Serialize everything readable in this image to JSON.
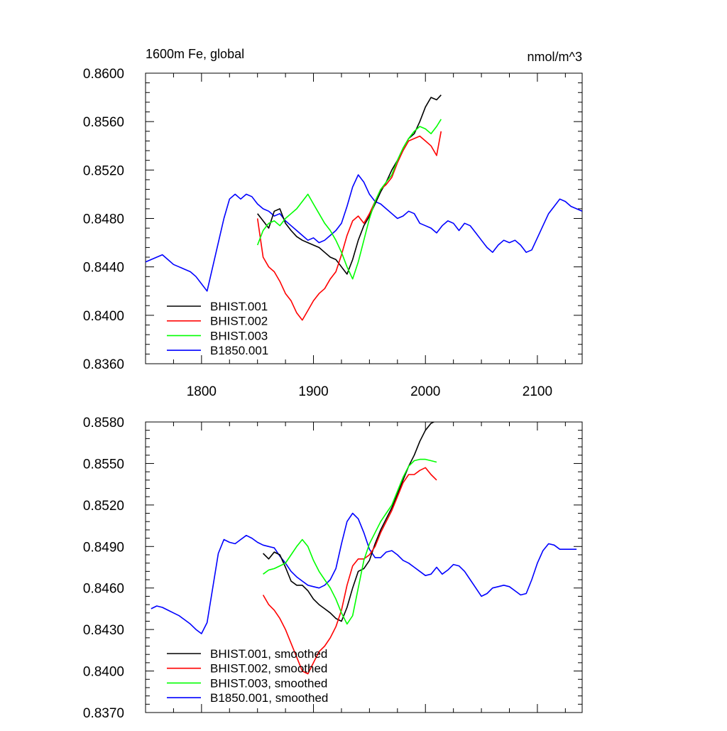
{
  "chart_data": [
    {
      "type": "line",
      "title_left": "1600m Fe, global",
      "title_right": "nmol/m^3",
      "xlim": [
        1750,
        2140
      ],
      "ylim": [
        0.836,
        0.86
      ],
      "yticks": [
        "0.8360",
        "0.8400",
        "0.8440",
        "0.8480",
        "0.8520",
        "0.8560",
        "0.8600"
      ],
      "xticks": [
        "1800",
        "1900",
        "2000",
        "2100"
      ],
      "legend_position": "bottom-left",
      "series": [
        {
          "name": "BHIST.001",
          "color": "#000000",
          "x": [
            1850,
            1855,
            1860,
            1865,
            1870,
            1875,
            1880,
            1885,
            1890,
            1895,
            1900,
            1905,
            1910,
            1915,
            1920,
            1925,
            1930,
            1935,
            1940,
            1945,
            1950,
            1955,
            1960,
            1965,
            1970,
            1975,
            1980,
            1985,
            1990,
            1995,
            2000,
            2005,
            2010,
            2014
          ],
          "y": [
            0.8484,
            0.8478,
            0.8472,
            0.8486,
            0.8488,
            0.8476,
            0.847,
            0.8465,
            0.8462,
            0.846,
            0.8458,
            0.8456,
            0.8452,
            0.8448,
            0.8446,
            0.844,
            0.8434,
            0.8446,
            0.8462,
            0.8474,
            0.8482,
            0.8492,
            0.8502,
            0.851,
            0.852,
            0.8528,
            0.8538,
            0.8546,
            0.855,
            0.856,
            0.8572,
            0.858,
            0.8578,
            0.8582
          ]
        },
        {
          "name": "BHIST.002",
          "color": "#ff0000",
          "x": [
            1850,
            1855,
            1860,
            1865,
            1870,
            1875,
            1880,
            1885,
            1890,
            1895,
            1900,
            1905,
            1910,
            1915,
            1920,
            1925,
            1930,
            1935,
            1940,
            1945,
            1950,
            1955,
            1960,
            1965,
            1970,
            1975,
            1980,
            1985,
            1990,
            1995,
            2000,
            2005,
            2010,
            2014
          ],
          "y": [
            0.848,
            0.8448,
            0.844,
            0.8436,
            0.8428,
            0.8418,
            0.8412,
            0.8402,
            0.8396,
            0.8404,
            0.8412,
            0.8418,
            0.8422,
            0.843,
            0.8436,
            0.845,
            0.8466,
            0.8478,
            0.8482,
            0.8476,
            0.8484,
            0.8494,
            0.8504,
            0.8508,
            0.8514,
            0.8526,
            0.8536,
            0.8544,
            0.8546,
            0.8548,
            0.8544,
            0.854,
            0.8532,
            0.8552
          ]
        },
        {
          "name": "BHIST.003",
          "color": "#00ff00",
          "x": [
            1850,
            1855,
            1860,
            1865,
            1870,
            1875,
            1880,
            1885,
            1890,
            1895,
            1900,
            1905,
            1910,
            1915,
            1920,
            1925,
            1930,
            1935,
            1940,
            1945,
            1950,
            1955,
            1960,
            1965,
            1970,
            1975,
            1980,
            1985,
            1990,
            1995,
            2000,
            2005,
            2010,
            2014
          ],
          "y": [
            0.8458,
            0.847,
            0.8476,
            0.8478,
            0.8474,
            0.848,
            0.8484,
            0.8488,
            0.8494,
            0.85,
            0.8492,
            0.8484,
            0.8476,
            0.847,
            0.8462,
            0.8452,
            0.844,
            0.843,
            0.8444,
            0.8462,
            0.848,
            0.8494,
            0.8504,
            0.851,
            0.8516,
            0.8528,
            0.8538,
            0.8546,
            0.8552,
            0.8556,
            0.8554,
            0.855,
            0.8556,
            0.8562
          ]
        },
        {
          "name": "B1850.001",
          "color": "#0000ff",
          "x": [
            1750,
            1755,
            1760,
            1765,
            1770,
            1775,
            1780,
            1785,
            1790,
            1795,
            1800,
            1805,
            1810,
            1815,
            1820,
            1825,
            1830,
            1835,
            1840,
            1845,
            1850,
            1855,
            1860,
            1865,
            1870,
            1875,
            1880,
            1885,
            1890,
            1895,
            1900,
            1905,
            1910,
            1915,
            1920,
            1925,
            1930,
            1935,
            1940,
            1945,
            1950,
            1955,
            1960,
            1965,
            1970,
            1975,
            1980,
            1985,
            1990,
            1995,
            2000,
            2005,
            2010,
            2015,
            2020,
            2025,
            2030,
            2035,
            2040,
            2045,
            2050,
            2055,
            2060,
            2065,
            2070,
            2075,
            2080,
            2085,
            2090,
            2095,
            2100,
            2105,
            2110,
            2115,
            2120,
            2125,
            2130,
            2135,
            2140
          ],
          "y": [
            0.8444,
            0.8446,
            0.8448,
            0.845,
            0.8446,
            0.8442,
            0.844,
            0.8438,
            0.8436,
            0.8432,
            0.8426,
            0.842,
            0.844,
            0.846,
            0.848,
            0.8496,
            0.85,
            0.8496,
            0.85,
            0.8498,
            0.8492,
            0.8488,
            0.8486,
            0.8482,
            0.8484,
            0.8478,
            0.8474,
            0.847,
            0.8466,
            0.8462,
            0.8464,
            0.846,
            0.8462,
            0.8466,
            0.847,
            0.8476,
            0.849,
            0.8506,
            0.8516,
            0.851,
            0.85,
            0.8494,
            0.8492,
            0.8488,
            0.8484,
            0.848,
            0.8482,
            0.8486,
            0.8484,
            0.8476,
            0.8474,
            0.8472,
            0.8468,
            0.8474,
            0.8478,
            0.8476,
            0.847,
            0.8476,
            0.8474,
            0.8468,
            0.8462,
            0.8456,
            0.8452,
            0.8458,
            0.8462,
            0.846,
            0.8462,
            0.8458,
            0.8452,
            0.8454,
            0.8464,
            0.8474,
            0.8484,
            0.849,
            0.8496,
            0.8494,
            0.849,
            0.8488,
            0.8486
          ]
        }
      ]
    },
    {
      "type": "line",
      "xlim": [
        1750,
        2140
      ],
      "ylim": [
        0.837,
        0.858
      ],
      "yticks": [
        "0.8370",
        "0.8400",
        "0.8430",
        "0.8460",
        "0.8490",
        "0.8520",
        "0.8550",
        "0.8580"
      ],
      "legend_position": "bottom-left",
      "series": [
        {
          "name": "BHIST.001, smoothed",
          "color": "#000000",
          "x": [
            1855,
            1860,
            1865,
            1870,
            1875,
            1880,
            1885,
            1890,
            1895,
            1900,
            1905,
            1910,
            1915,
            1920,
            1925,
            1930,
            1935,
            1940,
            1945,
            1950,
            1955,
            1960,
            1965,
            1970,
            1975,
            1980,
            1985,
            1990,
            1995,
            2000,
            2005,
            2010
          ],
          "y": [
            0.8485,
            0.8481,
            0.8486,
            0.8484,
            0.8475,
            0.8465,
            0.8462,
            0.8462,
            0.8458,
            0.8452,
            0.8448,
            0.8445,
            0.8442,
            0.8438,
            0.8436,
            0.8446,
            0.846,
            0.8472,
            0.8474,
            0.848,
            0.8492,
            0.8502,
            0.851,
            0.8518,
            0.8528,
            0.8538,
            0.8548,
            0.8556,
            0.8566,
            0.8574,
            0.8579,
            0.8581
          ]
        },
        {
          "name": "BHIST.002, smoothed",
          "color": "#ff0000",
          "x": [
            1855,
            1860,
            1865,
            1870,
            1875,
            1880,
            1885,
            1890,
            1895,
            1900,
            1905,
            1910,
            1915,
            1920,
            1925,
            1930,
            1935,
            1940,
            1945,
            1950,
            1955,
            1960,
            1965,
            1970,
            1975,
            1980,
            1985,
            1990,
            1995,
            2000,
            2005,
            2010
          ],
          "y": [
            0.8455,
            0.8448,
            0.8444,
            0.8438,
            0.843,
            0.842,
            0.841,
            0.84,
            0.8398,
            0.8406,
            0.8414,
            0.8418,
            0.8424,
            0.8432,
            0.8444,
            0.8462,
            0.8476,
            0.8481,
            0.8481,
            0.8484,
            0.849,
            0.85,
            0.8508,
            0.8516,
            0.8526,
            0.8536,
            0.8542,
            0.8542,
            0.8545,
            0.8547,
            0.8542,
            0.8538
          ]
        },
        {
          "name": "BHIST.003, smoothed",
          "color": "#00ff00",
          "x": [
            1855,
            1860,
            1865,
            1870,
            1875,
            1880,
            1885,
            1890,
            1895,
            1900,
            1905,
            1910,
            1915,
            1920,
            1925,
            1930,
            1935,
            1940,
            1945,
            1950,
            1955,
            1960,
            1965,
            1970,
            1975,
            1980,
            1985,
            1990,
            1995,
            2000,
            2005,
            2010
          ],
          "y": [
            0.847,
            0.8473,
            0.8474,
            0.8476,
            0.8478,
            0.8484,
            0.849,
            0.8495,
            0.849,
            0.848,
            0.8472,
            0.8466,
            0.846,
            0.8452,
            0.8442,
            0.8434,
            0.844,
            0.846,
            0.848,
            0.8492,
            0.85,
            0.8508,
            0.8514,
            0.852,
            0.853,
            0.854,
            0.8548,
            0.8552,
            0.8553,
            0.8553,
            0.8552,
            0.8551
          ]
        },
        {
          "name": "B1850.001, smoothed",
          "color": "#0000ff",
          "x": [
            1755,
            1760,
            1765,
            1770,
            1775,
            1780,
            1785,
            1790,
            1795,
            1800,
            1805,
            1810,
            1815,
            1820,
            1825,
            1830,
            1835,
            1840,
            1845,
            1850,
            1855,
            1860,
            1865,
            1870,
            1875,
            1880,
            1885,
            1890,
            1895,
            1900,
            1905,
            1910,
            1915,
            1920,
            1925,
            1930,
            1935,
            1940,
            1945,
            1950,
            1955,
            1960,
            1965,
            1970,
            1975,
            1980,
            1985,
            1990,
            1995,
            2000,
            2005,
            2010,
            2015,
            2020,
            2025,
            2030,
            2035,
            2040,
            2045,
            2050,
            2055,
            2060,
            2065,
            2070,
            2075,
            2080,
            2085,
            2090,
            2095,
            2100,
            2105,
            2110,
            2115,
            2120,
            2125,
            2130,
            2135
          ],
          "y": [
            0.8445,
            0.8447,
            0.8446,
            0.8444,
            0.8442,
            0.844,
            0.8437,
            0.8434,
            0.843,
            0.8427,
            0.8435,
            0.846,
            0.8485,
            0.8495,
            0.8493,
            0.8492,
            0.8495,
            0.8498,
            0.8496,
            0.8493,
            0.8491,
            0.849,
            0.8489,
            0.8483,
            0.8478,
            0.8472,
            0.8468,
            0.8465,
            0.8462,
            0.8461,
            0.846,
            0.8462,
            0.8466,
            0.8474,
            0.8492,
            0.8508,
            0.8514,
            0.851,
            0.85,
            0.8488,
            0.8482,
            0.8482,
            0.8486,
            0.8487,
            0.8484,
            0.848,
            0.8478,
            0.8475,
            0.8472,
            0.8469,
            0.847,
            0.8475,
            0.847,
            0.8473,
            0.8477,
            0.8476,
            0.8472,
            0.8466,
            0.846,
            0.8454,
            0.8456,
            0.846,
            0.8461,
            0.8462,
            0.8461,
            0.8458,
            0.8455,
            0.8456,
            0.8466,
            0.8478,
            0.8487,
            0.8492,
            0.8491,
            0.8488,
            0.8488,
            0.8488,
            0.8488
          ]
        }
      ]
    }
  ]
}
